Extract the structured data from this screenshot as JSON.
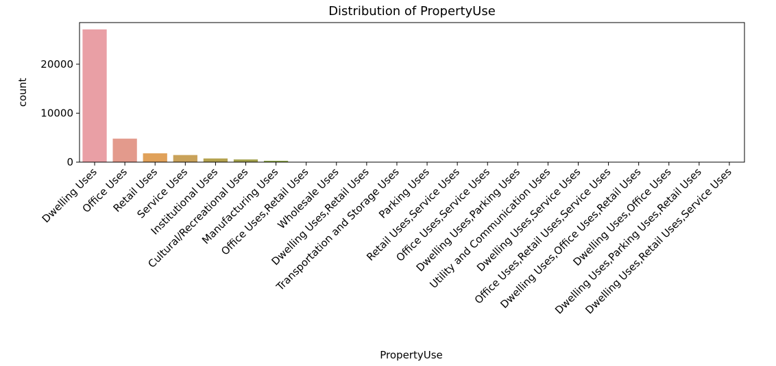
{
  "chart_data": {
    "type": "bar",
    "title": "Distribution of PropertyUse",
    "xlabel": "PropertyUse",
    "ylabel": "count",
    "ylim": [
      0,
      28500
    ],
    "yticks": [
      0,
      10000,
      20000
    ],
    "ytick_labels": [
      "0",
      "10000",
      "20000"
    ],
    "grid": false,
    "categories": [
      "Dwelling Uses",
      "Office Uses",
      "Retail Uses",
      "Service Uses",
      "Institutional Uses",
      "Cultural/Recreational Uses",
      "Manufacturing Uses",
      "Office Uses,Retail Uses",
      "Wholesale Uses",
      "Dwelling Uses,Retail Uses",
      "Transportation and Storage Uses",
      "Parking Uses",
      "Retail Uses,Service Uses",
      "Office Uses,Service Uses",
      "Dwelling Uses,Parking Uses",
      "Utility and Communication Uses",
      "Dwelling Uses,Service Uses",
      "Office Uses,Retail Uses,Service Uses",
      "Dwelling Uses,Office Uses,Retail Uses",
      "Dwelling Uses,Office Uses",
      "Dwelling Uses,Parking Uses,Retail Uses",
      "Dwelling Uses,Retail Uses,Service Uses"
    ],
    "values": [
      27100,
      4800,
      1800,
      1450,
      750,
      550,
      280,
      60,
      40,
      30,
      25,
      20,
      15,
      12,
      10,
      8,
      6,
      5,
      4,
      3,
      2,
      1
    ],
    "colors": [
      "#e99fa5",
      "#e39a8c",
      "#e0a15a",
      "#c9a25a",
      "#b4a24e",
      "#a3a14c",
      "#8fa74a",
      "#6cac4c",
      "#4fb06a",
      "#4db28c",
      "#4fb39f",
      "#4fb3ad",
      "#52b1ba",
      "#57aec9",
      "#63a9d8",
      "#8aa4e3",
      "#a59de8",
      "#bd96e6",
      "#d08fe0",
      "#de8bd3",
      "#e38cc2",
      "#e693b2"
    ]
  }
}
